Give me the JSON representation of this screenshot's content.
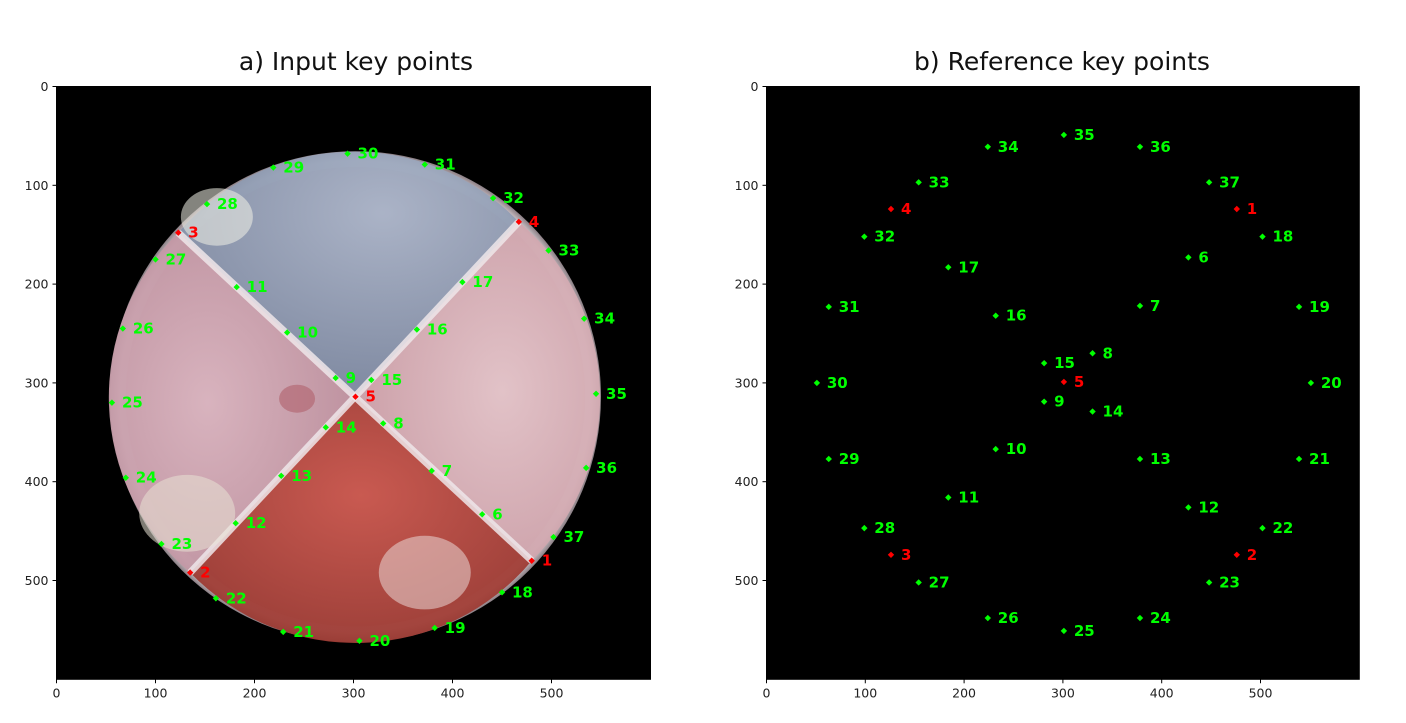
{
  "chart_data": [
    {
      "type": "scatter",
      "title": "a) Input key points",
      "image_content": "photograph of a circular petri dish divided into four quadrants",
      "xlim": [
        0,
        600
      ],
      "ylim": [
        600,
        0
      ],
      "xticks": [
        "0",
        "100",
        "200",
        "300",
        "400",
        "500"
      ],
      "yticks": [
        "0",
        "100",
        "200",
        "300",
        "400",
        "500"
      ],
      "colors": {
        "normal": "#00ff00",
        "highlight": "#ff0000"
      },
      "points": [
        {
          "label": "1",
          "x": 480,
          "y": 480,
          "highlight": true
        },
        {
          "label": "2",
          "x": 135,
          "y": 492,
          "highlight": true
        },
        {
          "label": "3",
          "x": 123,
          "y": 148,
          "highlight": true
        },
        {
          "label": "4",
          "x": 467,
          "y": 137,
          "highlight": true
        },
        {
          "label": "5",
          "x": 302,
          "y": 314,
          "highlight": true
        },
        {
          "label": "6",
          "x": 430,
          "y": 433
        },
        {
          "label": "7",
          "x": 379,
          "y": 389
        },
        {
          "label": "8",
          "x": 330,
          "y": 341
        },
        {
          "label": "9",
          "x": 282,
          "y": 295
        },
        {
          "label": "10",
          "x": 233,
          "y": 249
        },
        {
          "label": "11",
          "x": 182,
          "y": 203
        },
        {
          "label": "12",
          "x": 181,
          "y": 442
        },
        {
          "label": "13",
          "x": 227,
          "y": 394
        },
        {
          "label": "14",
          "x": 272,
          "y": 345
        },
        {
          "label": "15",
          "x": 318,
          "y": 297
        },
        {
          "label": "16",
          "x": 364,
          "y": 246
        },
        {
          "label": "17",
          "x": 410,
          "y": 198
        },
        {
          "label": "18",
          "x": 450,
          "y": 512
        },
        {
          "label": "19",
          "x": 382,
          "y": 548
        },
        {
          "label": "20",
          "x": 306,
          "y": 561
        },
        {
          "label": "21",
          "x": 229,
          "y": 552
        },
        {
          "label": "22",
          "x": 161,
          "y": 518
        },
        {
          "label": "23",
          "x": 106,
          "y": 463
        },
        {
          "label": "24",
          "x": 70,
          "y": 396
        },
        {
          "label": "25",
          "x": 56,
          "y": 320
        },
        {
          "label": "26",
          "x": 67,
          "y": 245
        },
        {
          "label": "27",
          "x": 100,
          "y": 175
        },
        {
          "label": "28",
          "x": 152,
          "y": 119
        },
        {
          "label": "29",
          "x": 219,
          "y": 82
        },
        {
          "label": "30",
          "x": 294,
          "y": 68
        },
        {
          "label": "31",
          "x": 372,
          "y": 79
        },
        {
          "label": "32",
          "x": 441,
          "y": 113
        },
        {
          "label": "33",
          "x": 497,
          "y": 166
        },
        {
          "label": "34",
          "x": 533,
          "y": 235
        },
        {
          "label": "35",
          "x": 545,
          "y": 311
        },
        {
          "label": "36",
          "x": 535,
          "y": 386
        },
        {
          "label": "37",
          "x": 502,
          "y": 456
        }
      ]
    },
    {
      "type": "scatter",
      "title": "b) Reference key points",
      "xlim": [
        0,
        600
      ],
      "ylim": [
        600,
        0
      ],
      "xticks": [
        "0",
        "100",
        "200",
        "300",
        "400",
        "500"
      ],
      "yticks": [
        "0",
        "100",
        "200",
        "300",
        "400",
        "500"
      ],
      "colors": {
        "normal": "#00ff00",
        "highlight": "#ff0000"
      },
      "points": [
        {
          "label": "1",
          "x": 476,
          "y": 124,
          "highlight": true
        },
        {
          "label": "2",
          "x": 476,
          "y": 474,
          "highlight": true
        },
        {
          "label": "3",
          "x": 126,
          "y": 474,
          "highlight": true
        },
        {
          "label": "4",
          "x": 126,
          "y": 124,
          "highlight": true
        },
        {
          "label": "5",
          "x": 301,
          "y": 299,
          "highlight": true
        },
        {
          "label": "6",
          "x": 427,
          "y": 173
        },
        {
          "label": "7",
          "x": 378,
          "y": 222
        },
        {
          "label": "8",
          "x": 330,
          "y": 270
        },
        {
          "label": "9",
          "x": 281,
          "y": 319
        },
        {
          "label": "10",
          "x": 232,
          "y": 367
        },
        {
          "label": "11",
          "x": 184,
          "y": 416
        },
        {
          "label": "12",
          "x": 427,
          "y": 426
        },
        {
          "label": "13",
          "x": 378,
          "y": 377
        },
        {
          "label": "14",
          "x": 330,
          "y": 329
        },
        {
          "label": "15",
          "x": 281,
          "y": 280
        },
        {
          "label": "16",
          "x": 232,
          "y": 232
        },
        {
          "label": "17",
          "x": 184,
          "y": 183
        },
        {
          "label": "18",
          "x": 502,
          "y": 152
        },
        {
          "label": "19",
          "x": 539,
          "y": 223
        },
        {
          "label": "20",
          "x": 551,
          "y": 300
        },
        {
          "label": "21",
          "x": 539,
          "y": 377
        },
        {
          "label": "22",
          "x": 502,
          "y": 447
        },
        {
          "label": "23",
          "x": 448,
          "y": 502
        },
        {
          "label": "24",
          "x": 378,
          "y": 538
        },
        {
          "label": "25",
          "x": 301,
          "y": 551
        },
        {
          "label": "26",
          "x": 224,
          "y": 538
        },
        {
          "label": "27",
          "x": 154,
          "y": 502
        },
        {
          "label": "28",
          "x": 99,
          "y": 447
        },
        {
          "label": "29",
          "x": 63,
          "y": 377
        },
        {
          "label": "30",
          "x": 51,
          "y": 300
        },
        {
          "label": "31",
          "x": 63,
          "y": 223
        },
        {
          "label": "32",
          "x": 99,
          "y": 152
        },
        {
          "label": "33",
          "x": 154,
          "y": 97
        },
        {
          "label": "34",
          "x": 224,
          "y": 61
        },
        {
          "label": "35",
          "x": 301,
          "y": 49
        },
        {
          "label": "36",
          "x": 378,
          "y": 61
        },
        {
          "label": "37",
          "x": 448,
          "y": 97
        }
      ]
    }
  ]
}
